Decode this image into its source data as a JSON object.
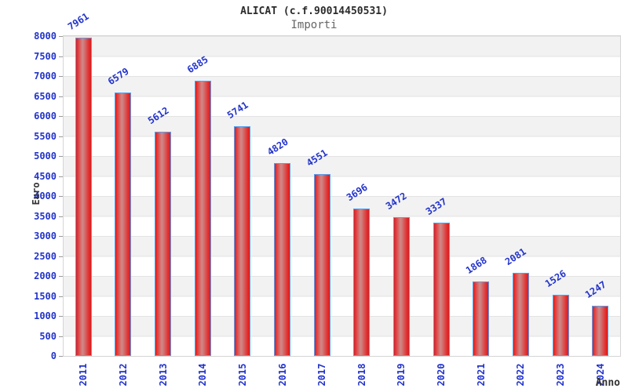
{
  "header": {
    "title": "ALICAT (c.f.90014450531)",
    "subtitle": "Importi"
  },
  "chart_data": {
    "type": "bar",
    "title": "ALICAT (c.f.90014450531)",
    "subtitle": "Importi",
    "xlabel": "Anno",
    "ylabel": "Euro",
    "categories": [
      "2011",
      "2012",
      "2013",
      "2014",
      "2015",
      "2016",
      "2017",
      "2018",
      "2019",
      "2020",
      "2021",
      "2022",
      "2023",
      "2024"
    ],
    "values": [
      7961,
      6579,
      5612,
      6885,
      5741,
      4820,
      4551,
      3696,
      3472,
      3337,
      1868,
      2081,
      1526,
      1247
    ],
    "value_labels": [
      "7961",
      "6579",
      "5612",
      "6885",
      "5741",
      "4820",
      "4551",
      "3696",
      "3472",
      "3337",
      "1868",
      "2081",
      "1526",
      "1247"
    ],
    "ylim": [
      0,
      8000
    ],
    "ytick_step": 500,
    "yticks": [
      "0",
      "500",
      "1000",
      "1500",
      "2000",
      "2500",
      "3000",
      "3500",
      "4000",
      "4500",
      "5000",
      "5500",
      "6000",
      "6500",
      "7000",
      "7500",
      "8000"
    ],
    "grid": "horizontal-alternating-bands",
    "legend": "none",
    "colors": {
      "bar_red": "#dd1b1b",
      "bar_center_highlight": "#d08888",
      "bar_border_blue": "#55a0f0",
      "label_blue": "#2233cc",
      "band_gray": "#f2f2f2",
      "gridline": "#e3e3e3",
      "plot_border": "#d5d5d5",
      "title_color": "#2b2b2b",
      "subtitle_gray": "#666666",
      "axis_label_dark": "#333333"
    }
  }
}
